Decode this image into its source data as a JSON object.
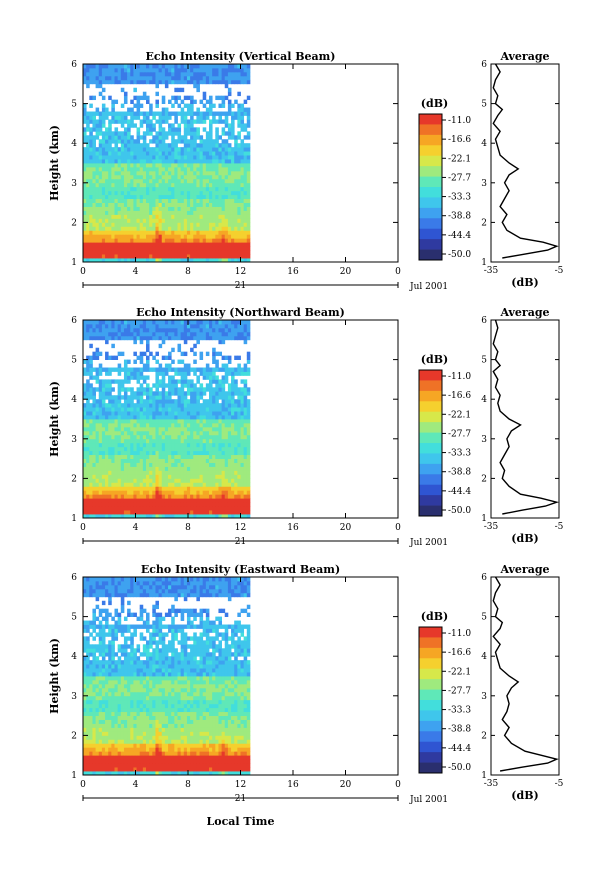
{
  "figure": {
    "xaxis_label": "Local Time",
    "date_day": "21",
    "date_month": "Jul 2001"
  },
  "chart_data": [
    {
      "type": "heatmap",
      "title": "Echo Intensity (Vertical Beam)",
      "ylabel": "Height (km)",
      "x_ticks": [
        "0",
        "4",
        "8",
        "12",
        "16",
        "20",
        "0"
      ],
      "y_ticks": [
        "1",
        "2",
        "3",
        "4",
        "5",
        "6"
      ],
      "xlim": [
        0,
        24
      ],
      "ylim": [
        1,
        6
      ],
      "data_time_range": [
        0,
        12.6
      ],
      "colorbar": {
        "unit": "(dB)",
        "ticks": [
          "-11.0",
          "-16.6",
          "-22.1",
          "-27.7",
          "-33.3",
          "-38.8",
          "-44.4",
          "-50.0"
        ],
        "range": [
          -50.0,
          -11.0
        ]
      },
      "profile": {
        "title": "Average",
        "xlabel": "(dB)",
        "x_ticks": [
          "-35",
          "-5"
        ],
        "y_ticks": [
          "1",
          "2",
          "3",
          "4",
          "5",
          "6"
        ],
        "xlim": [
          -35,
          -5
        ],
        "ylim": [
          1,
          6
        ],
        "height": [
          1.1,
          1.2,
          1.3,
          1.4,
          1.5,
          1.6,
          1.8,
          2.0,
          2.2,
          2.4,
          2.6,
          2.8,
          3.0,
          3.2,
          3.35,
          3.5,
          3.7,
          3.9,
          4.1,
          4.3,
          4.5,
          4.7,
          4.85,
          5.0,
          5.2,
          5.4,
          5.6,
          5.8,
          6.0
        ],
        "value": [
          -30,
          -20,
          -10,
          -6,
          -12,
          -22,
          -28,
          -30,
          -28,
          -31,
          -29,
          -27,
          -29,
          -27,
          -23,
          -27,
          -31,
          -32,
          -33,
          -31,
          -34,
          -32,
          -30,
          -33,
          -32,
          -34,
          -33,
          -31,
          -33
        ]
      }
    },
    {
      "type": "heatmap",
      "title": "Echo Intensity (Northward Beam)",
      "ylabel": "Height (km)",
      "x_ticks": [
        "0",
        "4",
        "8",
        "12",
        "16",
        "20",
        "0"
      ],
      "y_ticks": [
        "1",
        "2",
        "3",
        "4",
        "5",
        "6"
      ],
      "xlim": [
        0,
        24
      ],
      "ylim": [
        1,
        6
      ],
      "data_time_range": [
        0,
        12.6
      ],
      "colorbar": {
        "unit": "(dB)",
        "ticks": [
          "-11.0",
          "-16.6",
          "-22.1",
          "-27.7",
          "-33.3",
          "-38.8",
          "-44.4",
          "-50.0"
        ],
        "range": [
          -50.0,
          -11.0
        ]
      },
      "profile": {
        "title": "Average",
        "xlabel": "(dB)",
        "x_ticks": [
          "-35",
          "-5"
        ],
        "y_ticks": [
          "1",
          "2",
          "3",
          "4",
          "5",
          "6"
        ],
        "xlim": [
          -35,
          -5
        ],
        "ylim": [
          1,
          6
        ],
        "height": [
          1.1,
          1.2,
          1.3,
          1.4,
          1.5,
          1.6,
          1.8,
          2.0,
          2.2,
          2.4,
          2.6,
          2.8,
          3.0,
          3.2,
          3.35,
          3.5,
          3.7,
          3.9,
          4.1,
          4.3,
          4.5,
          4.7,
          4.85,
          5.0,
          5.2,
          5.4,
          5.6,
          5.8,
          6.0
        ],
        "value": [
          -30,
          -21,
          -11,
          -6,
          -13,
          -22,
          -27,
          -30,
          -29,
          -31,
          -29,
          -27,
          -28,
          -26,
          -22,
          -27,
          -31,
          -32,
          -31,
          -33,
          -32,
          -34,
          -31,
          -33,
          -32,
          -34,
          -33,
          -32,
          -33
        ]
      }
    },
    {
      "type": "heatmap",
      "title": "Echo Intensity (Eastward Beam)",
      "ylabel": "Height (km)",
      "x_ticks": [
        "0",
        "4",
        "8",
        "12",
        "16",
        "20",
        "0"
      ],
      "y_ticks": [
        "1",
        "2",
        "3",
        "4",
        "5",
        "6"
      ],
      "xlim": [
        0,
        24
      ],
      "ylim": [
        1,
        6
      ],
      "data_time_range": [
        0,
        12.6
      ],
      "colorbar": {
        "unit": "(dB)",
        "ticks": [
          "-11.0",
          "-16.6",
          "-22.1",
          "-27.7",
          "-33.3",
          "-38.8",
          "-44.4",
          "-50.0"
        ],
        "range": [
          -50.0,
          -11.0
        ]
      },
      "profile": {
        "title": "Average",
        "xlabel": "(dB)",
        "x_ticks": [
          "-35",
          "-5"
        ],
        "y_ticks": [
          "1",
          "2",
          "3",
          "4",
          "5",
          "6"
        ],
        "xlim": [
          -35,
          -5
        ],
        "ylim": [
          1,
          6
        ],
        "height": [
          1.1,
          1.2,
          1.3,
          1.4,
          1.5,
          1.6,
          1.8,
          2.0,
          2.2,
          2.4,
          2.6,
          2.8,
          3.0,
          3.2,
          3.35,
          3.5,
          3.7,
          3.9,
          4.1,
          4.3,
          4.5,
          4.7,
          4.85,
          5.0,
          5.2,
          5.4,
          5.6,
          5.8,
          6.0
        ],
        "value": [
          -31,
          -21,
          -10,
          -6,
          -13,
          -20,
          -26,
          -29,
          -27,
          -30,
          -28,
          -27,
          -28,
          -26,
          -23,
          -27,
          -31,
          -32,
          -33,
          -31,
          -34,
          -31,
          -30,
          -33,
          -32,
          -34,
          -33,
          -31,
          -33
        ]
      }
    }
  ]
}
